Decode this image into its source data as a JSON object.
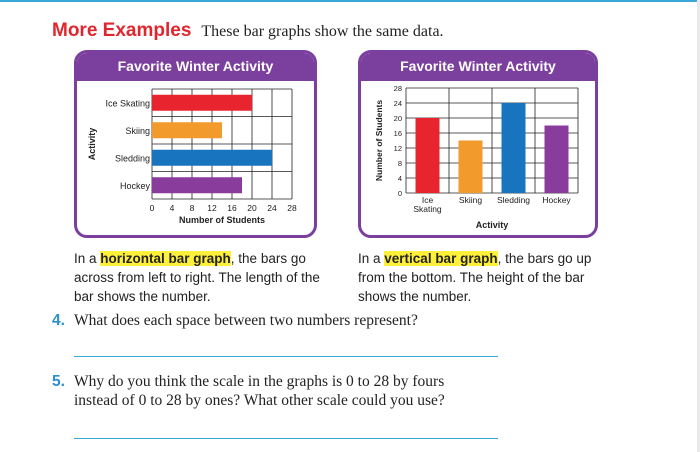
{
  "header": {
    "title": "More Examples",
    "subtitle": "These bar graphs show the same data."
  },
  "left_card": {
    "title": "Favorite Winter Activity"
  },
  "right_card": {
    "title": "Favorite Winter Activity"
  },
  "colors": {
    "purple": "#7b3f9e",
    "ice_skating": "#e8252e",
    "skiing": "#f39a2c",
    "sledding": "#1874be",
    "hockey": "#8a3c9c",
    "brand_red": "#e0262e",
    "question_blue": "#2b8fce",
    "highlight": "#fff13a"
  },
  "chart_data": [
    {
      "type": "bar",
      "orientation": "horizontal",
      "title": "Favorite Winter Activity",
      "categories": [
        "Ice Skating",
        "Skiing",
        "Sledding",
        "Hockey"
      ],
      "values": [
        20,
        14,
        24,
        18
      ],
      "xlabel": "Number of Students",
      "ylabel": "Activity",
      "xlim": [
        0,
        28
      ],
      "ticks": [
        "0",
        "4",
        "8",
        "12",
        "16",
        "20",
        "24",
        "28"
      ],
      "grid": true
    },
    {
      "type": "bar",
      "orientation": "vertical",
      "title": "Favorite Winter Activity",
      "categories": [
        "Ice Skating",
        "Skiing",
        "Sledding",
        "Hockey"
      ],
      "tick_labels": [
        "Ice\nSkating",
        "Skiing",
        "Sledding",
        "Hockey"
      ],
      "values": [
        20,
        14,
        24,
        18
      ],
      "xlabel": "Activity",
      "ylabel": "Number of Students",
      "ylim": [
        0,
        28
      ],
      "ticks": [
        "0",
        "4",
        "8",
        "12",
        "16",
        "20",
        "24",
        "28"
      ],
      "grid": true
    }
  ],
  "descriptions": {
    "horizontal": {
      "before": "In a ",
      "term": "horizontal bar graph",
      "after": ", the bars go across from left to right. The length of the bar shows the number."
    },
    "vertical": {
      "before": "In a ",
      "term": "vertical bar graph",
      "after": ", the bars go up from the bottom. The height of the bar shows the number."
    }
  },
  "questions": [
    {
      "number": "4.",
      "lines": [
        "What does each space between two numbers represent?"
      ]
    },
    {
      "number": "5.",
      "lines": [
        "Why do you think the scale in the graphs is 0 to 28 by fours",
        "instead of 0 to 28 by ones? What other scale could you use?"
      ]
    }
  ]
}
